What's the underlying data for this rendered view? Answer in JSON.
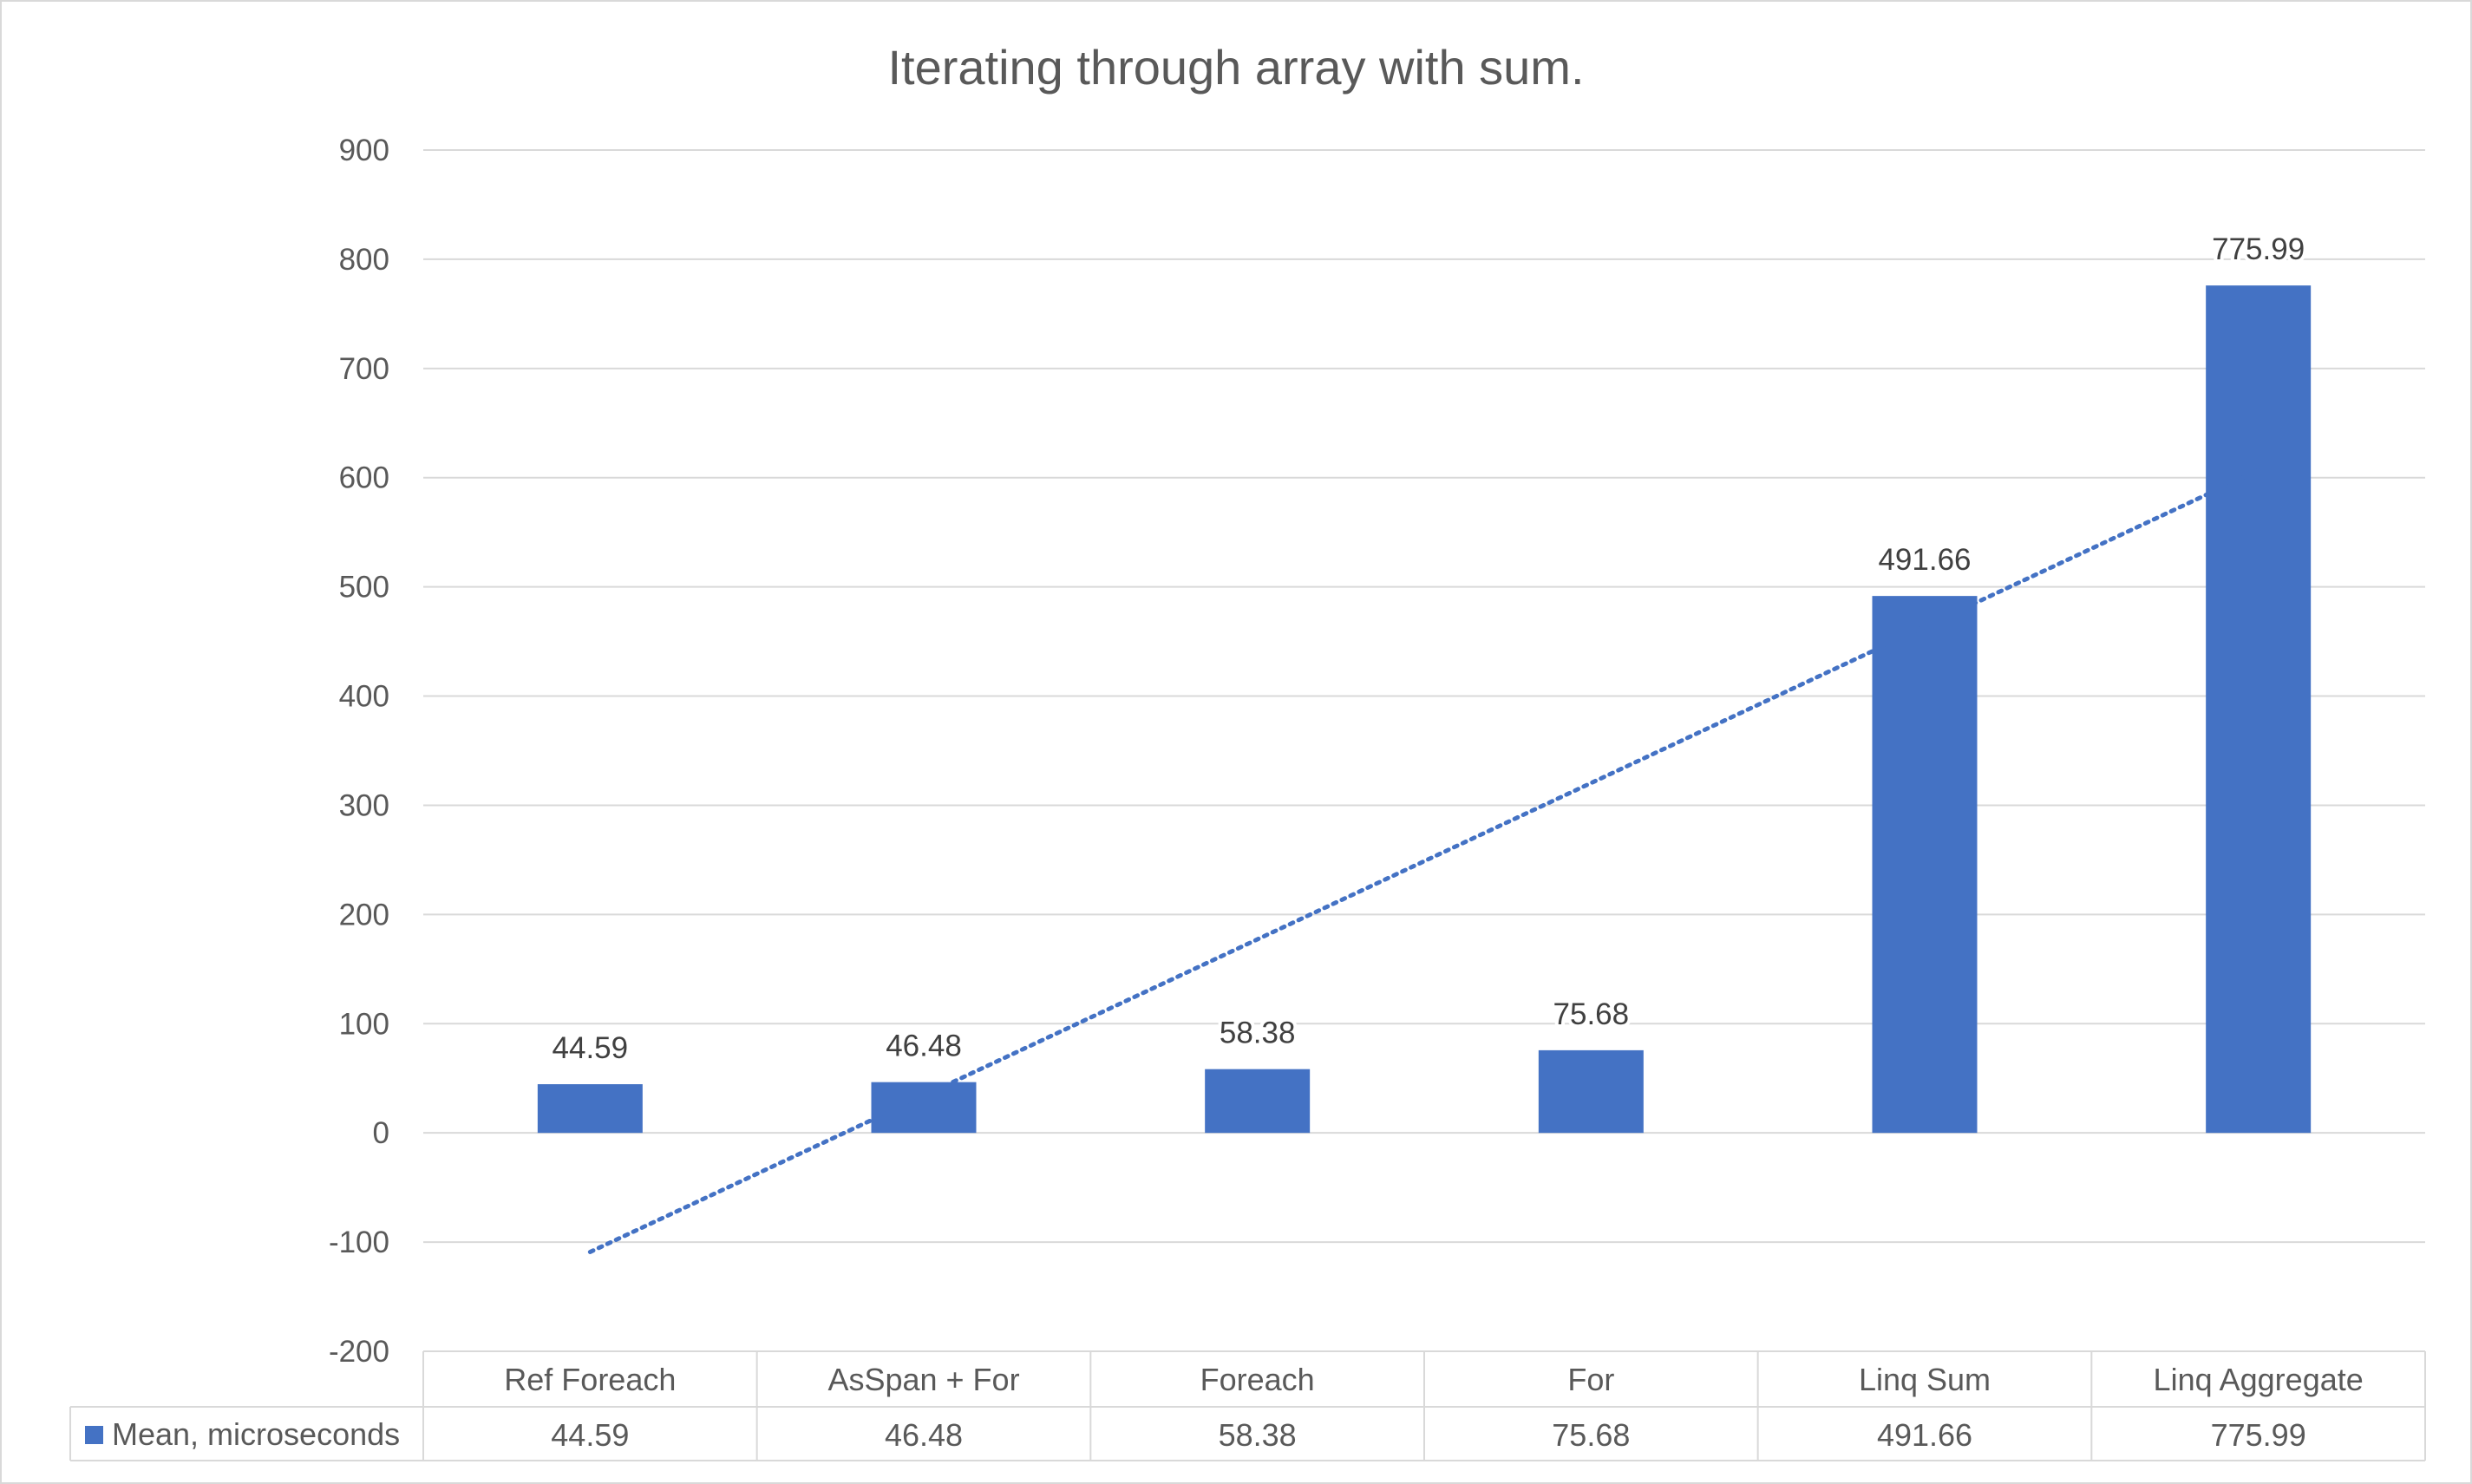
{
  "chart_data": {
    "type": "bar",
    "title": "Iterating through array with sum.",
    "categories": [
      "Ref Foreach",
      "AsSpan + For",
      "Foreach",
      "For",
      "Linq Sum",
      "Linq Aggregate"
    ],
    "series": [
      {
        "name": "Mean, microseconds",
        "values": [
          44.59,
          46.48,
          58.38,
          75.68,
          491.66,
          775.99
        ],
        "data_labels": [
          "44.59",
          "46.48",
          "58.38",
          "75.68",
          "491.66",
          "775.99"
        ],
        "color": "#4472C4"
      }
    ],
    "trendline": {
      "type": "linear",
      "style": "dotted",
      "color": "#4472C4"
    },
    "yticks": [
      "900",
      "800",
      "700",
      "600",
      "500",
      "400",
      "300",
      "200",
      "100",
      "0",
      "-100",
      "-200"
    ],
    "ylim": [
      -200,
      900
    ],
    "grid": true,
    "legend": "data table below chart",
    "data_table": {
      "row_label": "Mean, microseconds",
      "values": [
        "44.59",
        "46.48",
        "58.38",
        "75.68",
        "491.66",
        "775.99"
      ]
    },
    "colors": {
      "bar": "#4472C4",
      "grid": "#d9d9d9",
      "text": "#595959"
    }
  }
}
